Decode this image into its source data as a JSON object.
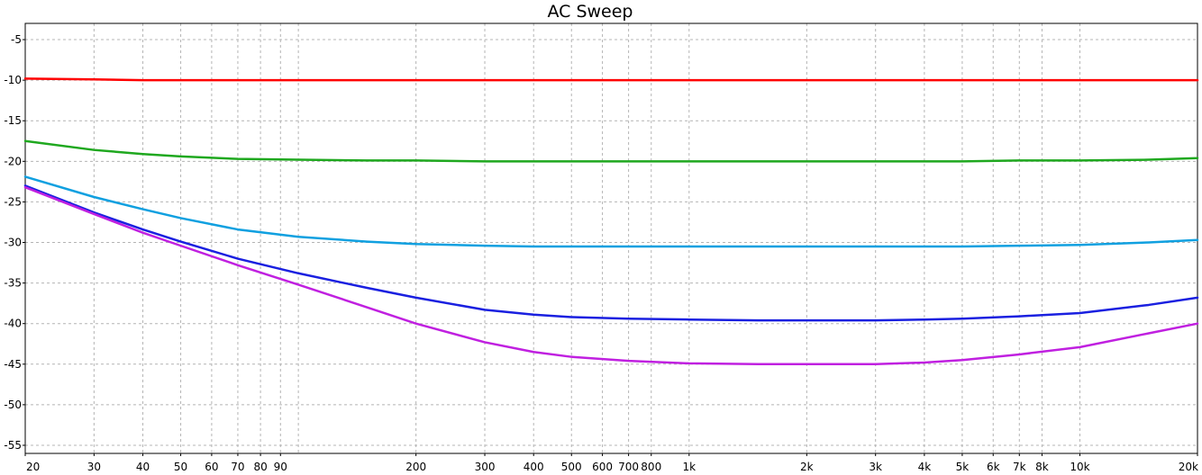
{
  "chart_data": {
    "type": "line",
    "title": "AC Sweep",
    "xlabel": "",
    "ylabel": "",
    "xscale": "log",
    "xlim": [
      20,
      20000
    ],
    "ylim": [
      -56,
      -3
    ],
    "grid": true,
    "x_ticks": [
      {
        "value": 20,
        "label": "20"
      },
      {
        "value": 30,
        "label": "30"
      },
      {
        "value": 40,
        "label": "40"
      },
      {
        "value": 50,
        "label": "50"
      },
      {
        "value": 60,
        "label": "60"
      },
      {
        "value": 70,
        "label": "70"
      },
      {
        "value": 80,
        "label": "80"
      },
      {
        "value": 90,
        "label": "90"
      },
      {
        "value": 200,
        "label": "200"
      },
      {
        "value": 300,
        "label": "300"
      },
      {
        "value": 400,
        "label": "400"
      },
      {
        "value": 500,
        "label": "500"
      },
      {
        "value": 600,
        "label": "600"
      },
      {
        "value": 700,
        "label": "700"
      },
      {
        "value": 800,
        "label": "800"
      },
      {
        "value": 1000,
        "label": "1k"
      },
      {
        "value": 2000,
        "label": "2k"
      },
      {
        "value": 3000,
        "label": "3k"
      },
      {
        "value": 4000,
        "label": "4k"
      },
      {
        "value": 5000,
        "label": "5k"
      },
      {
        "value": 6000,
        "label": "6k"
      },
      {
        "value": 7000,
        "label": "7k"
      },
      {
        "value": 8000,
        "label": "8k"
      },
      {
        "value": 10000,
        "label": "10k"
      },
      {
        "value": 20000,
        "label": "20k"
      }
    ],
    "x_grid_only": [
      100
    ],
    "y_ticks": [
      {
        "value": -5,
        "label": "-5"
      },
      {
        "value": -10,
        "label": "-10"
      },
      {
        "value": -15,
        "label": "-15"
      },
      {
        "value": -20,
        "label": "-20"
      },
      {
        "value": -25,
        "label": "-25"
      },
      {
        "value": -30,
        "label": "-30"
      },
      {
        "value": -35,
        "label": "-35"
      },
      {
        "value": -40,
        "label": "-40"
      },
      {
        "value": -45,
        "label": "-45"
      },
      {
        "value": -50,
        "label": "-50"
      },
      {
        "value": -55,
        "label": "-55"
      }
    ],
    "x": [
      20,
      30,
      40,
      50,
      70,
      100,
      150,
      200,
      300,
      400,
      500,
      700,
      1000,
      1500,
      2000,
      3000,
      4000,
      5000,
      7000,
      10000,
      15000,
      20000
    ],
    "series": [
      {
        "color": "#ff0000",
        "values": [
          -9.8,
          -9.9,
          -10.0,
          -10.0,
          -10.0,
          -10.0,
          -10.0,
          -10.0,
          -10.0,
          -10.0,
          -10.0,
          -10.0,
          -10.0,
          -10.0,
          -10.0,
          -10.0,
          -10.0,
          -10.0,
          -10.0,
          -10.0,
          -10.0,
          -10.0
        ]
      },
      {
        "color": "#1fa81f",
        "values": [
          -17.5,
          -18.6,
          -19.1,
          -19.4,
          -19.7,
          -19.8,
          -19.9,
          -19.9,
          -20.0,
          -20.0,
          -20.0,
          -20.0,
          -20.0,
          -20.0,
          -20.0,
          -20.0,
          -20.0,
          -20.0,
          -19.9,
          -19.9,
          -19.8,
          -19.6
        ]
      },
      {
        "color": "#10a0e0",
        "values": [
          -21.9,
          -24.4,
          -25.9,
          -27.0,
          -28.4,
          -29.3,
          -29.9,
          -30.2,
          -30.4,
          -30.5,
          -30.5,
          -30.5,
          -30.5,
          -30.5,
          -30.5,
          -30.5,
          -30.5,
          -30.5,
          -30.4,
          -30.3,
          -30.0,
          -29.7
        ]
      },
      {
        "color": "#1a20e0",
        "values": [
          -23.0,
          -26.3,
          -28.4,
          -29.9,
          -32.0,
          -33.8,
          -35.6,
          -36.8,
          -38.3,
          -38.9,
          -39.2,
          -39.4,
          -39.5,
          -39.6,
          -39.6,
          -39.6,
          -39.5,
          -39.4,
          -39.1,
          -38.7,
          -37.7,
          -36.8
        ]
      },
      {
        "color": "#c020e0",
        "values": [
          -23.2,
          -26.5,
          -28.8,
          -30.4,
          -32.8,
          -35.2,
          -38.0,
          -40.0,
          -42.3,
          -43.5,
          -44.1,
          -44.6,
          -44.9,
          -45.0,
          -45.0,
          -45.0,
          -44.8,
          -44.5,
          -43.8,
          -42.9,
          -41.2,
          -40.0
        ]
      }
    ]
  }
}
